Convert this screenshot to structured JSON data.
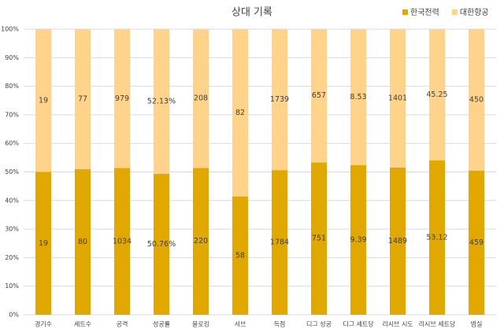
{
  "chart_data": {
    "type": "bar",
    "stacked": "percent",
    "title": "상대 기록",
    "categories": [
      "경기수",
      "세트수",
      "공격",
      "성공률",
      "블로킹",
      "서브",
      "득점",
      "디그 성공",
      "디그 세트당",
      "리시브 시도",
      "리시브 세트당",
      "범실"
    ],
    "series": [
      {
        "name": "한국전력",
        "color": "#e0a800",
        "values": [
          19,
          80,
          1034,
          50.76,
          220,
          58,
          1784,
          751,
          9.39,
          1489,
          53.12,
          459
        ],
        "value_labels": [
          null,
          null,
          null,
          "50.76%",
          null,
          null,
          null,
          null,
          null,
          null,
          null,
          null
        ]
      },
      {
        "name": "대한항공",
        "color": "#ffd38a",
        "values": [
          19,
          77,
          979,
          52.13,
          208,
          82,
          1739,
          657,
          8.53,
          1401,
          45.25,
          450
        ],
        "value_labels": [
          null,
          null,
          null,
          "52.13%",
          null,
          null,
          null,
          null,
          null,
          null,
          null,
          null
        ]
      }
    ],
    "ylim": [
      0,
      100
    ],
    "yticks": [
      {
        "value": 0,
        "label": "0%"
      },
      {
        "value": 10,
        "label": "10%"
      },
      {
        "value": 20,
        "label": "20%"
      },
      {
        "value": 30,
        "label": "30%"
      },
      {
        "value": 40,
        "label": "40%"
      },
      {
        "value": 50,
        "label": "50%"
      },
      {
        "value": 60,
        "label": "60%"
      },
      {
        "value": 70,
        "label": "70%"
      },
      {
        "value": 80,
        "label": "80%"
      },
      {
        "value": 90,
        "label": "90%"
      },
      {
        "value": 100,
        "label": "100%"
      }
    ],
    "grid": true,
    "legend": "top-right"
  }
}
